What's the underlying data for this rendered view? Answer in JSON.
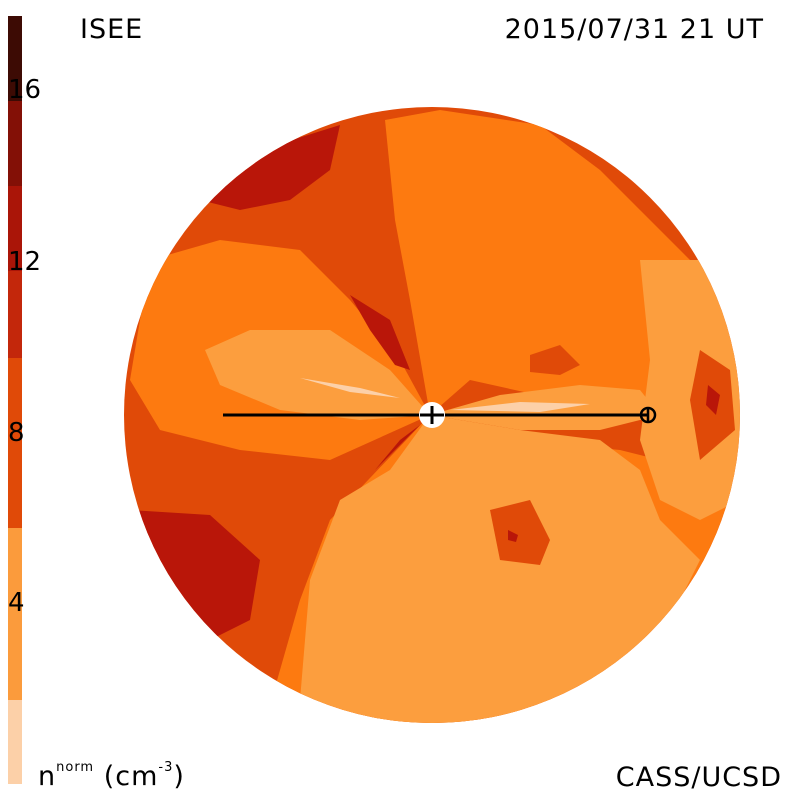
{
  "header": {
    "source_label": "ISEE",
    "timestamp": "2015/07/31 21 UT"
  },
  "footer": {
    "credit": "CASS/UCSD",
    "quantity": "n",
    "quantity_sup": "norm",
    "unit": "(cm",
    "unit_sup": "-3",
    "unit_close": ")"
  },
  "colorbar": {
    "ticks": [
      "16",
      "12",
      "8",
      "4"
    ],
    "colors": [
      "#fcd0a8",
      "#fb9b3c",
      "#fd7a10",
      "#e04a08",
      "#c3270b",
      "#aa1508",
      "#831006",
      "#5a0c05",
      "#2f0a04"
    ]
  },
  "map": {
    "colors": {
      "lightest": "#fcd0a8",
      "light": "#fc9e3e",
      "mid": "#fd7a10",
      "dark": "#e04a08",
      "darker": "#b91609",
      "darkest": "#8a0c06",
      "sun_line": "#000000"
    }
  }
}
